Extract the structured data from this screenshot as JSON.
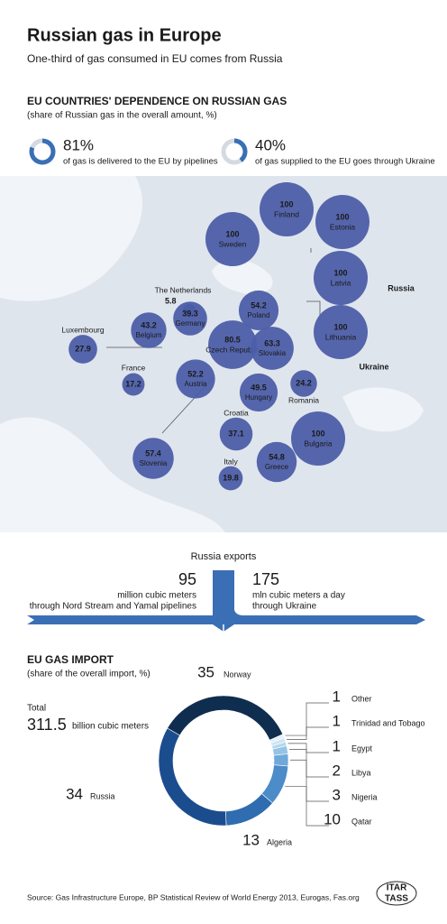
{
  "header": {
    "title": "Russian gas in Europe",
    "subtitle": "One-third of gas consumed in EU comes from Russia"
  },
  "dependence": {
    "heading": "EU COUNTRIES' DEPENDENCE ON RUSSIAN GAS",
    "subheading": "(share of Russian gas in the overall amount, %)",
    "stats": [
      {
        "value": 81,
        "label": "81%",
        "text": "of gas is delivered to the EU by pipelines"
      },
      {
        "value": 40,
        "label": "40%",
        "text": "of gas supplied to the EU goes through Ukraine"
      }
    ],
    "countries": [
      {
        "name": "Finland",
        "value": 100
      },
      {
        "name": "Estonia",
        "value": 100
      },
      {
        "name": "Sweden",
        "value": 100
      },
      {
        "name": "Latvia",
        "value": 100
      },
      {
        "name": "Lithuania",
        "value": 100
      },
      {
        "name": "Poland",
        "value": 54.2
      },
      {
        "name": "The Netherlands",
        "value": 5.8
      },
      {
        "name": "Germany",
        "value": 39.3
      },
      {
        "name": "Belgium",
        "value": 43.2
      },
      {
        "name": "Luxembourg",
        "value": 27.9
      },
      {
        "name": "France",
        "value": 17.2
      },
      {
        "name": "Czech Republic",
        "value": 80.5
      },
      {
        "name": "Slovakia",
        "value": 63.3
      },
      {
        "name": "Austria",
        "value": 52.2
      },
      {
        "name": "Hungary",
        "value": 49.5
      },
      {
        "name": "Romania",
        "value": 24.2
      },
      {
        "name": "Croatia",
        "value": 37.1
      },
      {
        "name": "Bulgaria",
        "value": 100
      },
      {
        "name": "Slovenia",
        "value": 57.4
      },
      {
        "name": "Greece",
        "value": 54.8
      },
      {
        "name": "Italy",
        "value": 19.8
      }
    ],
    "regions": [
      "Russia",
      "Ukraine"
    ]
  },
  "exports": {
    "title": "Russia exports",
    "flows": [
      {
        "value": 95,
        "unit": "million cubic meters",
        "route": "through Nord Stream and Yamal pipelines"
      },
      {
        "value": 175,
        "unit": "mln cubic meters a day",
        "route": "through Ukraine"
      }
    ]
  },
  "chart_data": {
    "type": "pie",
    "title": "EU GAS IMPORT",
    "subtitle": "(share of the overall import, %)",
    "total_label": "Total",
    "total": 311.5,
    "total_unit": "billion cubic meters",
    "categories": [
      "Norway",
      "Other",
      "Trinidad and Tobago",
      "Egypt",
      "Libya",
      "Nigeria",
      "Qatar",
      "Algeria",
      "Russia"
    ],
    "values": [
      35,
      1,
      1,
      1,
      2,
      3,
      10,
      13,
      34
    ],
    "colors": [
      "#0f2d4f",
      "#e3f0fa",
      "#cfe5f5",
      "#b5d7ef",
      "#94c3e6",
      "#6fa9d9",
      "#4b8cc9",
      "#2f6cb0",
      "#1b4d8e"
    ]
  },
  "source": "Source: Gas Infrastructure Europe, BP Statistical Review of World Energy 2013, Eurogas, Fas.org",
  "logo": [
    "ITAR",
    "TASS"
  ]
}
